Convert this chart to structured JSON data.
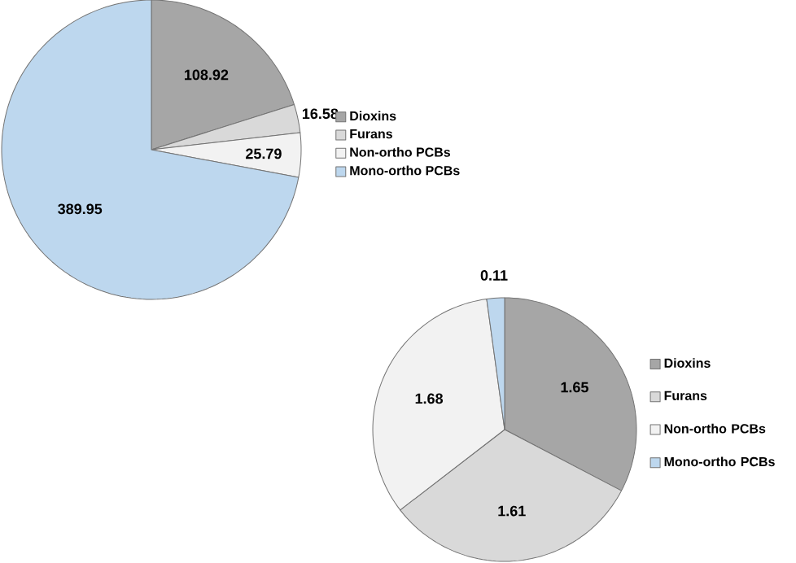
{
  "chart_data": [
    {
      "type": "pie",
      "categories": [
        "Dioxins",
        "Furans",
        "Non-ortho PCBs",
        "Mono-ortho PCBs"
      ],
      "values": [
        108.92,
        16.58,
        25.79,
        389.95
      ],
      "colors": [
        "#a6a6a6",
        "#d9d9d9",
        "#f2f2f2",
        "#bdd7ee"
      ],
      "data_labels": true,
      "legend": "right"
    },
    {
      "type": "pie",
      "categories": [
        "Dioxins",
        "Furans",
        "Non-ortho PCBs",
        "Mono-ortho PCBs"
      ],
      "values": [
        1.65,
        1.61,
        1.68,
        0.11
      ],
      "colors": [
        "#a6a6a6",
        "#d9d9d9",
        "#f2f2f2",
        "#bdd7ee"
      ],
      "data_labels": true,
      "legend": "right"
    }
  ]
}
